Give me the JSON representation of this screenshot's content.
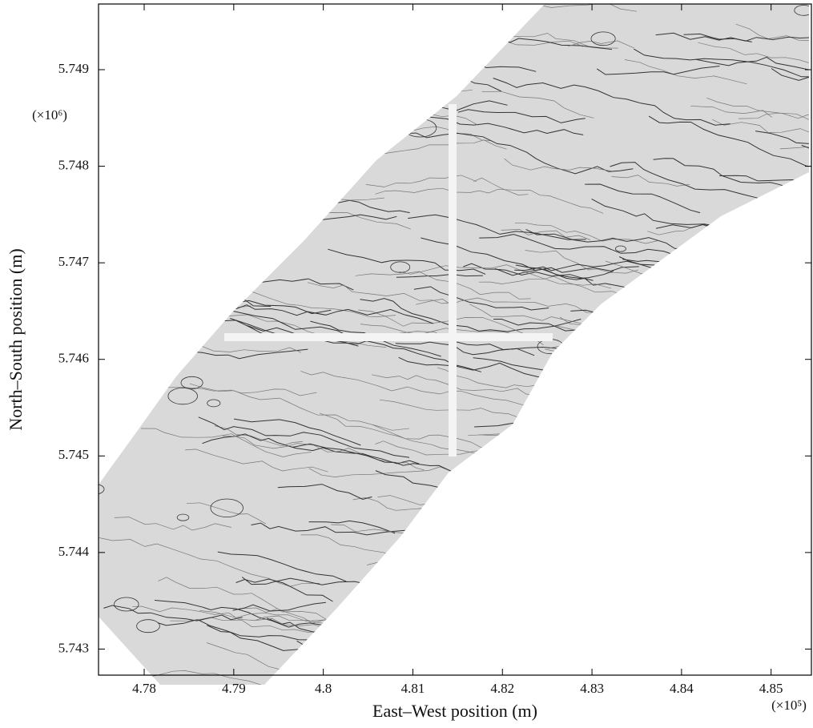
{
  "chart_data": {
    "type": "contour",
    "xlabel": "East–West position (m)",
    "ylabel": "North–South position (m)",
    "xscale_label": "(×10⁵)",
    "yscale_label": "(×10⁶)",
    "xlim": [
      4.7749,
      4.8545
    ],
    "ylim": [
      5.74273,
      5.74968
    ],
    "xticks": [
      4.78,
      4.79,
      4.8,
      4.81,
      4.82,
      4.83,
      4.84,
      4.85
    ],
    "yticks": [
      5.743,
      5.744,
      5.745,
      5.746,
      5.747,
      5.748,
      5.749
    ],
    "color": "#333333"
  }
}
